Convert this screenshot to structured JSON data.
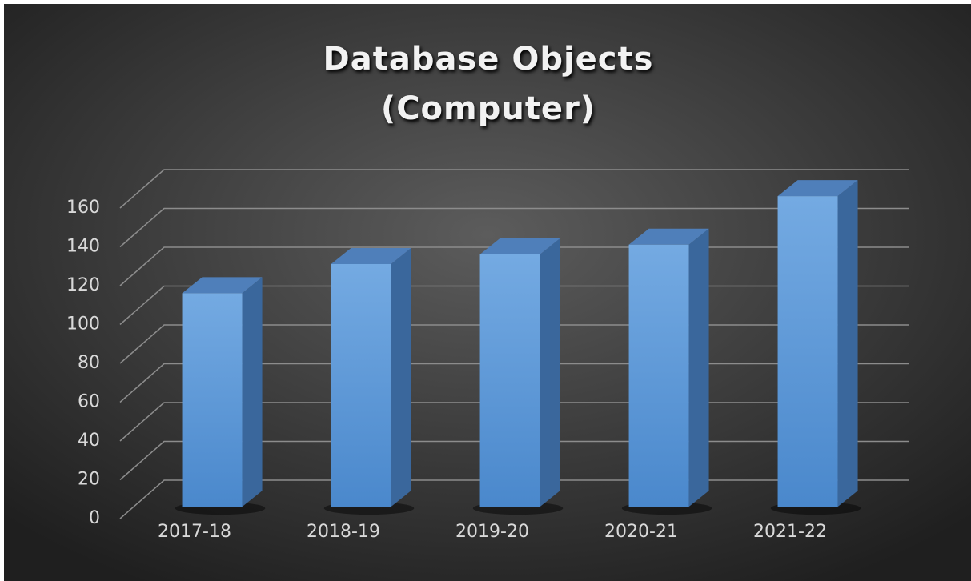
{
  "chart_data": {
    "type": "bar",
    "title": "Database Objects (Computer)",
    "categories": [
      "2017-18",
      "2018-19",
      "2019-20",
      "2020-21",
      "2021-22"
    ],
    "values": [
      110,
      125,
      130,
      135,
      160
    ],
    "color": "#5b9bd5",
    "ylim": [
      0,
      160
    ],
    "yticks": [
      0,
      20,
      40,
      60,
      80,
      100,
      120,
      140,
      160
    ],
    "grid": true
  }
}
